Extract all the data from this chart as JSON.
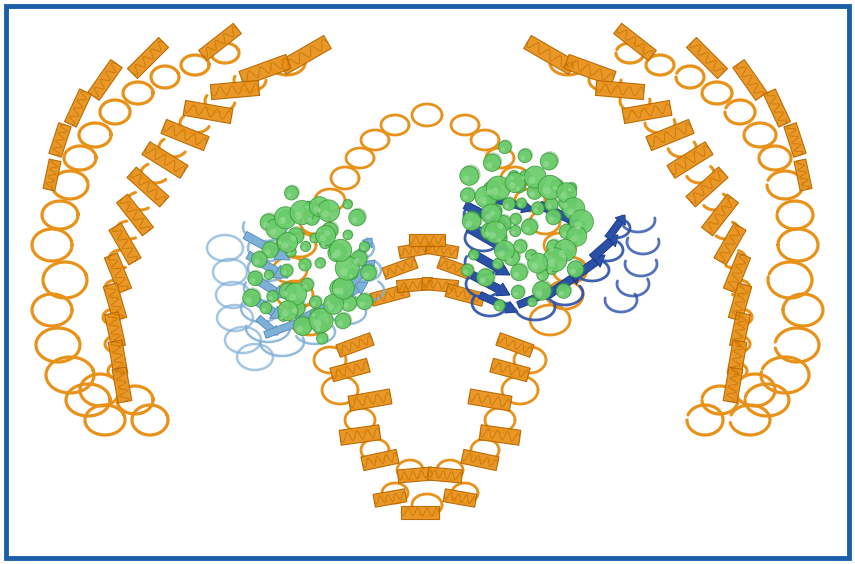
{
  "figure_width": 8.55,
  "figure_height": 5.64,
  "dpi": 100,
  "border_color": "#1a5fa8",
  "border_linewidth": 3.5,
  "background_color": "#ffffff",
  "tlr4_color": "#e8921a",
  "tlr4_dark": "#b86800",
  "md2_left_color": "#7fb0d8",
  "md2_left_dark": "#5a90bb",
  "md2_right_color": "#2a50a8",
  "md2_right_dark": "#1a3a88",
  "lps_color": "#6acc6a",
  "lps_dark": "#3a9a3a",
  "lps_light": "#9ade9a"
}
